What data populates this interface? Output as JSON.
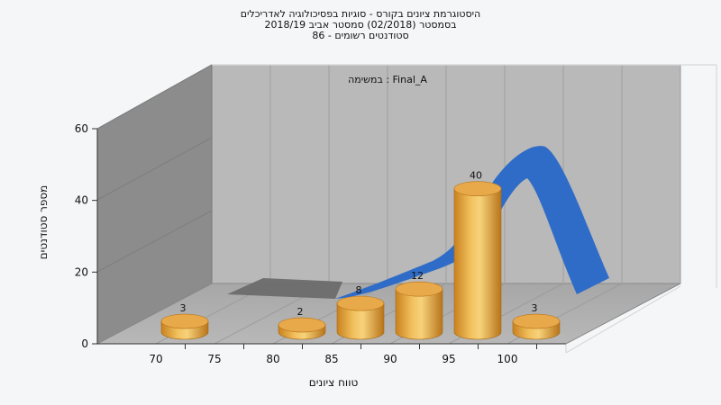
{
  "chart_data": {
    "type": "bar",
    "title_lines": [
      "היסטוגרמת ציונים בקורס - סוגיות בפסיכולוגיה לאדריכלים",
      "בסמסטר (02/2018) סמסטר אביב 2018/19",
      "סטודנטים רשומים - 86"
    ],
    "subtitle": "במשימה : Final_A",
    "xlabel": "טווח ציונים",
    "ylabel": "מספר סטודנטים",
    "x_ticks": [
      "70",
      "75",
      "80",
      "85",
      "90",
      "95",
      "100"
    ],
    "y_ticks": [
      "0",
      "20",
      "40",
      "60"
    ],
    "ylim": [
      0,
      60
    ],
    "bars": [
      {
        "x": 70,
        "value": 3,
        "label": "3"
      },
      {
        "x": 80,
        "value": 2,
        "label": "2"
      },
      {
        "x": 85,
        "value": 8,
        "label": "8"
      },
      {
        "x": 90,
        "value": 12,
        "label": "12"
      },
      {
        "x": 95,
        "value": 40,
        "label": "40"
      },
      {
        "x": 100,
        "value": 3,
        "label": "3"
      }
    ],
    "bar_color": "#e9a23c",
    "curve_color": "#2f6cc7",
    "curve_gray_color": "#6b6b6b",
    "grid": true
  }
}
